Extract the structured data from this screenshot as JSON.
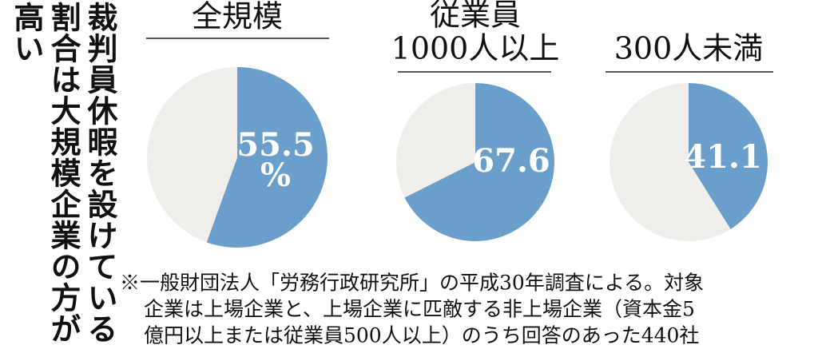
{
  "title": "裁判員休暇を設けている割合は大規模企業の方が高い",
  "note": [
    "※一般財団法人「労務行政研究所」の平成30年調査による。対象",
    "企業は上場企業と、上場企業に匹敵する非上場企業（資本金5",
    "億円以上または従業員500人以上）のうち回答のあった440社"
  ],
  "chart_data": [
    {
      "type": "pie",
      "title": [
        "全規模"
      ],
      "values": [
        55.5,
        44.5
      ],
      "colors": [
        "#6a9fcb",
        "#efeeea"
      ],
      "unit_label": "%"
    },
    {
      "type": "pie",
      "title": [
        "従業員",
        "1000人以上"
      ],
      "values": [
        67.6,
        32.4
      ],
      "colors": [
        "#6a9fcb",
        "#efeeea"
      ]
    },
    {
      "type": "pie",
      "title": [
        "300人未満"
      ],
      "values": [
        41.1,
        58.9
      ],
      "colors": [
        "#6a9fcb",
        "#efeeea"
      ]
    }
  ]
}
